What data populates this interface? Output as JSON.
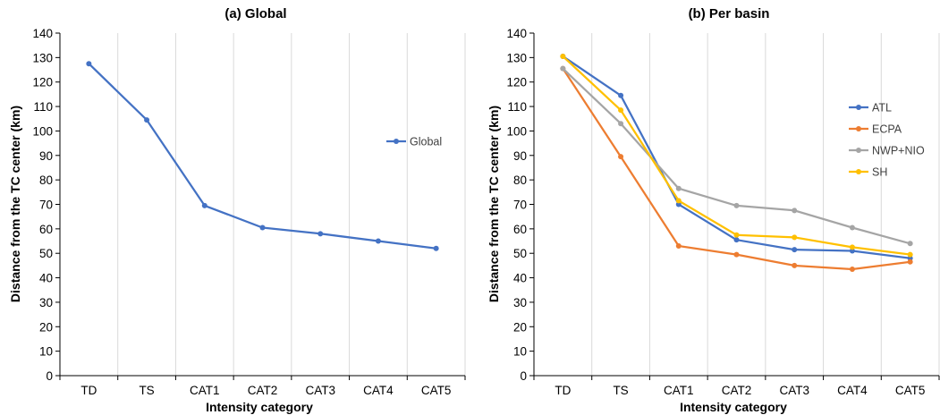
{
  "chart_data": [
    {
      "type": "line",
      "title": "(a)  Global",
      "xlabel": "Intensity category",
      "ylabel": "Distance from the TC center (km)",
      "categories": [
        "TD",
        "TS",
        "CAT1",
        "CAT2",
        "CAT3",
        "CAT4",
        "CAT5"
      ],
      "y_ticks": [
        "0",
        "10",
        "20",
        "30",
        "40",
        "50",
        "60",
        "70",
        "80",
        "90",
        "100",
        "110",
        "120",
        "130",
        "140"
      ],
      "ylim": [
        0,
        140
      ],
      "grid": "vertical",
      "legend_position": "right",
      "series": [
        {
          "name": "Global",
          "color": "#4472c4",
          "values": [
            127.5,
            104.5,
            69.5,
            60.5,
            58,
            55,
            52
          ]
        }
      ]
    },
    {
      "type": "line",
      "title": "(b)  Per basin",
      "xlabel": "Intensity category",
      "ylabel": "Distance from the TC center (km)",
      "categories": [
        "TD",
        "TS",
        "CAT1",
        "CAT2",
        "CAT3",
        "CAT4",
        "CAT5"
      ],
      "y_ticks": [
        "0",
        "10",
        "20",
        "30",
        "40",
        "50",
        "60",
        "70",
        "80",
        "90",
        "100",
        "110",
        "120",
        "130",
        "140"
      ],
      "ylim": [
        0,
        140
      ],
      "grid": "vertical",
      "legend_position": "right",
      "series": [
        {
          "name": "ATL",
          "color": "#4472c4",
          "values": [
            130.5,
            114.5,
            70,
            55.5,
            51.5,
            51,
            48
          ]
        },
        {
          "name": "ECPA",
          "color": "#ed7d31",
          "values": [
            125.5,
            89.5,
            53,
            49.5,
            45,
            43.5,
            46.5
          ]
        },
        {
          "name": "NWP+NIO",
          "color": "#a5a5a5",
          "values": [
            125.5,
            103,
            76.5,
            69.5,
            67.5,
            60.5,
            54
          ]
        },
        {
          "name": "SH",
          "color": "#ffc000",
          "values": [
            130.5,
            108.5,
            71.5,
            57.5,
            56.5,
            52.5,
            49.5
          ]
        }
      ]
    }
  ]
}
